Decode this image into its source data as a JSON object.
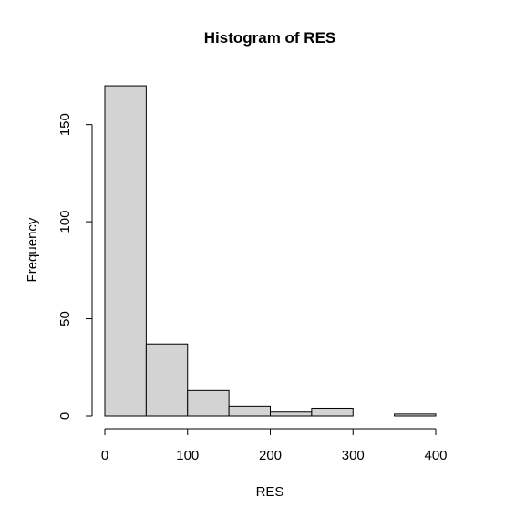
{
  "chart_data": {
    "type": "bar",
    "title": "Histogram of RES",
    "xlabel": "RES",
    "ylabel": "Frequency",
    "bins": [
      {
        "from": 0,
        "to": 50,
        "count": 170
      },
      {
        "from": 50,
        "to": 100,
        "count": 37
      },
      {
        "from": 100,
        "to": 150,
        "count": 13
      },
      {
        "from": 150,
        "to": 200,
        "count": 5
      },
      {
        "from": 200,
        "to": 250,
        "count": 2
      },
      {
        "from": 250,
        "to": 300,
        "count": 4
      },
      {
        "from": 300,
        "to": 350,
        "count": 0
      },
      {
        "from": 350,
        "to": 400,
        "count": 1
      }
    ],
    "xlim": [
      0,
      400
    ],
    "ylim": [
      0,
      170
    ],
    "x_ticks": [
      "0",
      "100",
      "200",
      "300",
      "400"
    ],
    "y_ticks": [
      "0",
      "50",
      "100",
      "150"
    ],
    "bar_color": "#d3d3d3",
    "grid": false,
    "legend": "none"
  }
}
